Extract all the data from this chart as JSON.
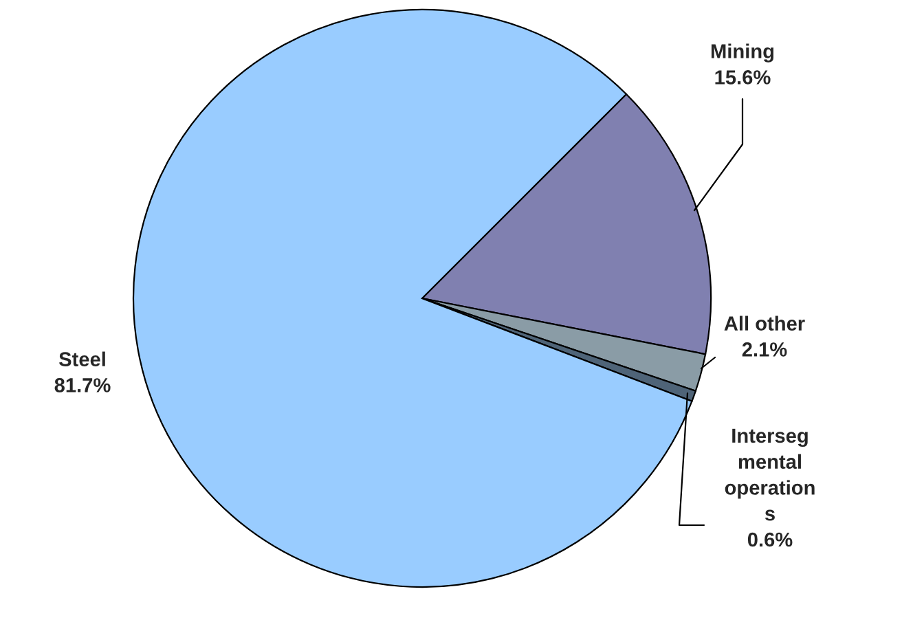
{
  "chart_data": {
    "type": "pie",
    "categories": [
      "Mining",
      "All other",
      "Interseg\nmental\noperation\ns",
      "Steel"
    ],
    "values": [
      15.6,
      2.1,
      0.6,
      81.7
    ],
    "colors": [
      "#8080b0",
      "#8a9ca6",
      "#4f6478",
      "#99ccff"
    ],
    "value_labels": [
      "15.6%",
      "2.1%",
      "0.6%",
      "81.7%"
    ]
  }
}
